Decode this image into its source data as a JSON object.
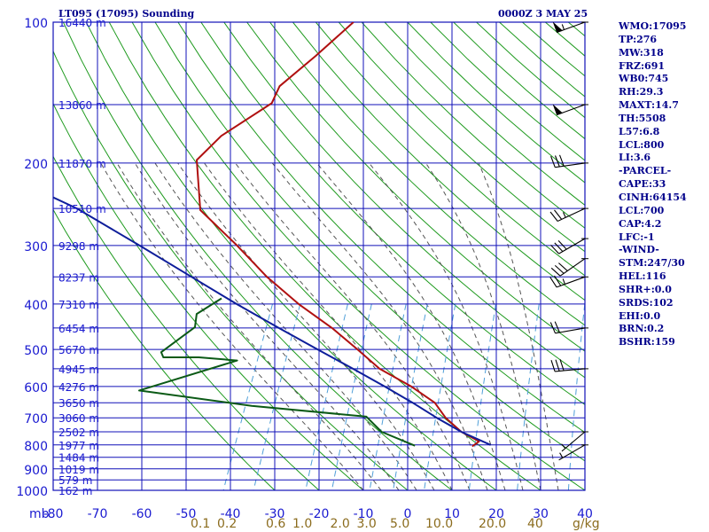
{
  "header": {
    "title": "LT095 (17095) Sounding",
    "valid_time": "0000Z  3 MAY 25"
  },
  "parameters": [
    "WMO:17095",
    "TP:276",
    "MW:318",
    "FRZ:691",
    "WB0:745",
    "RH:29.3",
    "MAXT:14.7",
    "TH:5508",
    "L57:6.8",
    "LCL:800",
    "LI:3.6",
    "-PARCEL-",
    "CAPE:33",
    "CINH:64154",
    "LCL:700",
    "CAP:4.2",
    "LFC:-1",
    "-WIND-",
    "STM:247/30",
    "HEL:116",
    "SHR+:0.0",
    "SRDS:102",
    "EHI:0.0",
    "BRN:0.2",
    "BSHR:159"
  ],
  "colors": {
    "grid": "#1010b8",
    "dry_adiabat": "#1e9a1e",
    "moist_adiabat": "#555555",
    "mixing_ratio": "#4f9fd8",
    "temperature": "#b01010",
    "dewpoint": "#0b5a16",
    "parcel": "#0e1e9a",
    "labels": "#1a1ad0",
    "mixing_labels": "#8b6c1e",
    "header_text": "#00008b"
  },
  "chart_data": {
    "type": "line",
    "subtype": "skew-T log-P sounding",
    "x_unit_label": "mb",
    "xlim": [
      -80,
      40
    ],
    "ylim": [
      100,
      1000
    ],
    "y_scale": "log",
    "grid": true,
    "pressure_ticks": [
      100,
      200,
      300,
      400,
      500,
      600,
      700,
      800,
      900,
      1000
    ],
    "temperature_ticks": [
      -80,
      -70,
      -60,
      -50,
      -40,
      -30,
      -20,
      -10,
      0,
      10,
      20,
      30,
      40
    ],
    "height_labels": [
      {
        "p": 100,
        "label": "16440 m"
      },
      {
        "p": 150,
        "label": "13860 m"
      },
      {
        "p": 200,
        "label": "11870 m"
      },
      {
        "p": 250,
        "label": "10510 m"
      },
      {
        "p": 300,
        "label": "9298 m"
      },
      {
        "p": 350,
        "label": "8237 m"
      },
      {
        "p": 400,
        "label": "7310 m"
      },
      {
        "p": 450,
        "label": "6454 m"
      },
      {
        "p": 500,
        "label": "5670 m"
      },
      {
        "p": 550,
        "label": "4945 m"
      },
      {
        "p": 600,
        "label": "4276 m"
      },
      {
        "p": 650,
        "label": "3650 m"
      },
      {
        "p": 700,
        "label": "3060 m"
      },
      {
        "p": 750,
        "label": "2502 m"
      },
      {
        "p": 800,
        "label": "1977 m"
      },
      {
        "p": 850,
        "label": "1484 m"
      },
      {
        "p": 900,
        "label": "1019 m"
      },
      {
        "p": 950,
        "label": "579 m"
      },
      {
        "p": 1000,
        "label": "162 m"
      }
    ],
    "mixing_ratio_labels": [
      {
        "w": 0.1,
        "label": "0.1",
        "t": -49
      },
      {
        "w": 0.2,
        "label": "0.2",
        "t": -43
      },
      {
        "w": 0.6,
        "label": "0.6",
        "t": -32
      },
      {
        "w": 1.0,
        "label": "1.0",
        "t": -26
      },
      {
        "w": 2.0,
        "label": "2.0",
        "t": -17.5
      },
      {
        "w": 3.0,
        "label": "3.0",
        "t": -11.5
      },
      {
        "w": 5.0,
        "label": "5.0",
        "t": -4
      },
      {
        "w": 10.0,
        "label": "10.0",
        "t": 4
      },
      {
        "w": 20.0,
        "label": "20.0",
        "t": 16
      },
      {
        "w": 40.0,
        "label": "40",
        "t": 27
      }
    ],
    "mixing_ratio_unit": "g/kg",
    "series": [
      {
        "key": "temperature",
        "points": [
          {
            "p": 100,
            "t": -61
          },
          {
            "p": 118,
            "t": -66
          },
          {
            "p": 137,
            "t": -71
          },
          {
            "p": 149,
            "t": -71
          },
          {
            "p": 175,
            "t": -79
          },
          {
            "p": 197,
            "t": -82
          },
          {
            "p": 252,
            "t": -76
          },
          {
            "p": 300,
            "t": -64
          },
          {
            "p": 350,
            "t": -54
          },
          {
            "p": 400,
            "t": -44
          },
          {
            "p": 450,
            "t": -34
          },
          {
            "p": 500,
            "t": -26
          },
          {
            "p": 550,
            "t": -19
          },
          {
            "p": 600,
            "t": -10
          },
          {
            "p": 650,
            "t": -3
          },
          {
            "p": 700,
            "t": 1
          },
          {
            "p": 750,
            "t": 6
          },
          {
            "p": 786,
            "t": 11
          },
          {
            "p": 806,
            "t": 10
          }
        ]
      },
      {
        "key": "dewpoint",
        "points": [
          {
            "p": 389,
            "t": -62
          },
          {
            "p": 420,
            "t": -66
          },
          {
            "p": 448,
            "t": -65
          },
          {
            "p": 507,
            "t": -70
          },
          {
            "p": 520,
            "t": -69
          },
          {
            "p": 520,
            "t": -61
          },
          {
            "p": 528,
            "t": -52
          },
          {
            "p": 612,
            "t": -71
          },
          {
            "p": 660,
            "t": -44
          },
          {
            "p": 696,
            "t": -17
          },
          {
            "p": 750,
            "t": -12
          },
          {
            "p": 803,
            "t": -3
          }
        ]
      },
      {
        "key": "parcel",
        "points": [
          {
            "p": 185,
            "t": -140
          },
          {
            "p": 250,
            "t": -104
          },
          {
            "p": 300,
            "t": -86
          },
          {
            "p": 350,
            "t": -71
          },
          {
            "p": 400,
            "t": -58
          },
          {
            "p": 450,
            "t": -46
          },
          {
            "p": 500,
            "t": -35
          },
          {
            "p": 550,
            "t": -25
          },
          {
            "p": 600,
            "t": -16
          },
          {
            "p": 650,
            "t": -8
          },
          {
            "p": 700,
            "t": -1
          },
          {
            "p": 750,
            "t": 6
          },
          {
            "p": 800,
            "t": 14
          }
        ]
      }
    ],
    "wind_barbs": [
      {
        "p": 100,
        "dir": 250,
        "kt": 55
      },
      {
        "p": 150,
        "dir": 250,
        "kt": 50
      },
      {
        "p": 200,
        "dir": 262,
        "kt": 30
      },
      {
        "p": 250,
        "dir": 245,
        "kt": 25
      },
      {
        "p": 290,
        "dir": 240,
        "kt": 30
      },
      {
        "p": 320,
        "dir": 235,
        "kt": 30
      },
      {
        "p": 350,
        "dir": 250,
        "kt": 25
      },
      {
        "p": 450,
        "dir": 260,
        "kt": 20
      },
      {
        "p": 550,
        "dir": 265,
        "kt": 30
      },
      {
        "p": 750,
        "dir": 230,
        "kt": 5
      },
      {
        "p": 800,
        "dir": 240,
        "kt": 5
      }
    ]
  }
}
